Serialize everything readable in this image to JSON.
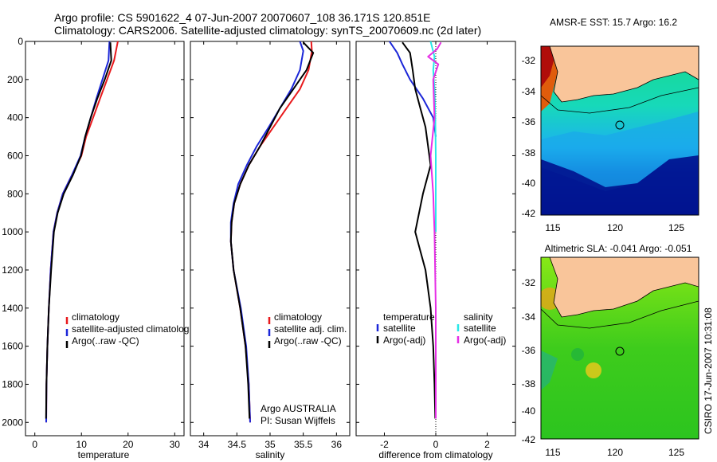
{
  "header": {
    "line1": "Argo profile: CS 5901622_4 07-Jun-2007 20070607_108 36.171S 120.851E",
    "line2": "Climatology: CARS2006. Satellite-adjusted climatology: synTS_20070609.nc (2d later)"
  },
  "colors": {
    "climatology": "#e8191c",
    "satellite": "#1b26d8",
    "argo": "#000000",
    "sal_satellite": "#28e8e8",
    "sal_argo": "#e62ee6",
    "land": "#f9c59a"
  },
  "depth_ticks": [
    "0",
    "200",
    "400",
    "600",
    "800",
    "1000",
    "1200",
    "1400",
    "1600",
    "1800",
    "2000"
  ],
  "chart_data": [
    {
      "type": "line",
      "id": "temperature",
      "xlabel": "temperature",
      "ylabel": "",
      "xlim": [
        -2,
        32
      ],
      "ylim": [
        2070,
        0
      ],
      "xticks": [
        0,
        10,
        20,
        30
      ],
      "yticks": [
        0,
        200,
        400,
        600,
        800,
        1000,
        1200,
        1400,
        1600,
        1800,
        2000
      ],
      "legend": {
        "position": "lower-right",
        "entries": [
          "climatology",
          "satellite-adjusted climatolog",
          "Argo(..raw -QC)"
        ]
      },
      "series": [
        {
          "name": "climatology",
          "color": "#e8191c",
          "x": [
            17.8,
            17.0,
            15.5,
            14.0,
            12.5,
            11.0,
            10.0,
            8.0,
            6.0,
            4.8,
            4.0,
            3.4,
            3.0,
            2.7,
            2.5,
            2.45
          ],
          "y": [
            0,
            100,
            200,
            300,
            400,
            500,
            600,
            700,
            800,
            900,
            1000,
            1200,
            1400,
            1600,
            1800,
            2000
          ]
        },
        {
          "name": "satellite-adjusted climatology",
          "color": "#1b26d8",
          "x": [
            16.0,
            15.8,
            14.5,
            13.2,
            12.0,
            10.8,
            9.8,
            8.0,
            6.0,
            4.8,
            4.0,
            3.4,
            3.0,
            2.7,
            2.5,
            2.45
          ],
          "y": [
            0,
            100,
            200,
            300,
            400,
            500,
            600,
            700,
            800,
            900,
            1000,
            1200,
            1400,
            1600,
            1800,
            2000
          ]
        },
        {
          "name": "Argo(..raw -QC)",
          "color": "#000000",
          "x": [
            16.2,
            16.4,
            15.0,
            13.4,
            12.0,
            10.8,
            9.9,
            8.2,
            6.2,
            4.9,
            4.1,
            3.5,
            3.0,
            2.7,
            2.5,
            2.4
          ],
          "y": [
            5,
            100,
            200,
            300,
            400,
            500,
            600,
            700,
            800,
            900,
            1000,
            1200,
            1400,
            1600,
            1800,
            1980
          ]
        }
      ]
    },
    {
      "type": "line",
      "id": "salinity",
      "xlabel": "salinity",
      "ylabel": "",
      "xlim": [
        33.8,
        36.2
      ],
      "ylim": [
        2070,
        0
      ],
      "xticks": [
        34,
        34.5,
        35,
        35.5,
        36
      ],
      "yticks": [
        0,
        200,
        400,
        600,
        800,
        1000,
        1200,
        1400,
        1600,
        1800,
        2000
      ],
      "legend": {
        "position": "lower-right",
        "entries": [
          "climatology",
          "satellite adj. clim.",
          "Argo(..raw -QC)"
        ]
      },
      "annotations": [
        "Argo AUSTRALIA",
        "PI: Susan Wijffels"
      ],
      "series": [
        {
          "name": "climatology",
          "color": "#e8191c",
          "x": [
            35.62,
            35.63,
            35.58,
            35.45,
            35.25,
            35.05,
            34.85,
            34.68,
            34.55,
            34.46,
            34.42,
            34.41,
            34.45,
            34.55,
            34.63,
            34.68,
            34.7
          ],
          "y": [
            0,
            50,
            150,
            250,
            350,
            450,
            550,
            650,
            750,
            850,
            950,
            1050,
            1200,
            1400,
            1600,
            1800,
            2000
          ]
        },
        {
          "name": "satellite adj. clim.",
          "color": "#1b26d8",
          "x": [
            35.45,
            35.5,
            35.45,
            35.32,
            35.15,
            34.98,
            34.8,
            34.65,
            34.52,
            34.45,
            34.41,
            34.41,
            34.45,
            34.56,
            34.64,
            34.68,
            34.7
          ],
          "y": [
            0,
            50,
            150,
            250,
            350,
            450,
            550,
            650,
            750,
            850,
            950,
            1050,
            1200,
            1400,
            1600,
            1800,
            2000
          ]
        },
        {
          "name": "Argo(..raw -QC)",
          "color": "#000000",
          "x": [
            35.5,
            35.65,
            35.55,
            35.35,
            35.15,
            35.0,
            34.85,
            34.68,
            34.55,
            34.46,
            34.42,
            34.41,
            34.45,
            34.55,
            34.63,
            34.67,
            34.69
          ],
          "y": [
            5,
            60,
            150,
            250,
            350,
            450,
            550,
            650,
            750,
            850,
            950,
            1050,
            1200,
            1400,
            1600,
            1800,
            1980
          ]
        }
      ]
    },
    {
      "type": "line",
      "id": "difference",
      "xlabel": "difference from climatology",
      "ylabel": "",
      "xlim": [
        -3.1,
        3.1
      ],
      "ylim": [
        2070,
        0
      ],
      "xticks": [
        -2,
        0,
        2
      ],
      "yticks": [
        0,
        200,
        400,
        600,
        800,
        1000,
        1200,
        1400,
        1600,
        1800,
        2000
      ],
      "legend": {
        "position": "lower-right",
        "headers": [
          "temperature",
          "salinity"
        ],
        "entries": [
          "satellite",
          "Argo(-adj)",
          "satellite",
          "Argo(-adj)"
        ]
      },
      "series": [
        {
          "name": "temperature satellite",
          "color": "#1b26d8",
          "x": [
            -1.8,
            -1.5,
            -1.3,
            -1.0,
            -0.5,
            -0.1,
            0.0
          ],
          "y": [
            0,
            60,
            120,
            200,
            300,
            400,
            500
          ]
        },
        {
          "name": "temperature Argo(-adj)",
          "color": "#000000",
          "x": [
            -1.3,
            -1.0,
            -0.9,
            -0.8,
            -0.6,
            -0.4,
            -0.3,
            -0.2,
            -0.5,
            -0.8,
            -0.6,
            -0.4,
            -0.2,
            -0.1,
            -0.05,
            -0.02
          ],
          "y": [
            5,
            60,
            150,
            250,
            350,
            450,
            550,
            650,
            800,
            1000,
            1100,
            1200,
            1400,
            1600,
            1800,
            1980
          ]
        },
        {
          "name": "salinity satellite",
          "color": "#28e8e8",
          "x": [
            -0.2,
            -0.05,
            -0.1,
            -0.05,
            -0.02,
            0.0,
            0.0,
            0.0
          ],
          "y": [
            0,
            80,
            150,
            250,
            400,
            600,
            800,
            1000
          ]
        },
        {
          "name": "salinity Argo(-adj)",
          "color": "#e62ee6",
          "x": [
            0.2,
            0.05,
            -0.3,
            0.1,
            -0.1,
            -0.05,
            -0.2,
            -0.1,
            -0.05,
            0.0,
            0.0,
            0.0
          ],
          "y": [
            5,
            40,
            80,
            120,
            200,
            400,
            600,
            800,
            1000,
            1400,
            1800,
            1980
          ]
        }
      ]
    }
  ],
  "maps": [
    {
      "id": "sst",
      "title": "AMSR-E SST: 15.7 Argo: 16.2",
      "xticks": [
        "115",
        "120",
        "125"
      ],
      "yticks": [
        "-32",
        "-34",
        "-36",
        "-38",
        "-40",
        "-42"
      ]
    },
    {
      "id": "sla",
      "title": "Altimetric SLA: -0.041 Argo: -0.051",
      "xticks": [
        "115",
        "120",
        "125"
      ],
      "yticks": [
        "-32",
        "-34",
        "-36",
        "-38",
        "-40",
        "-42"
      ]
    }
  ],
  "credit": "CSIRO 17-Jun-2007 10:31:08"
}
